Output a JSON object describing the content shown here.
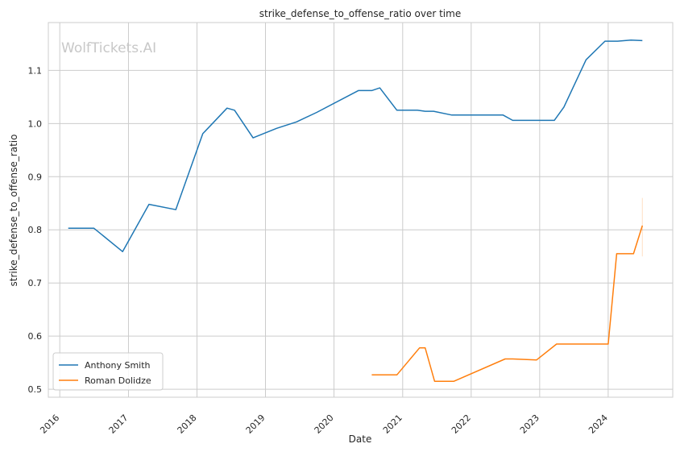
{
  "chart_data": {
    "type": "line",
    "title": "strike_defense_to_offense_ratio over time",
    "xlabel": "Date",
    "ylabel": "strike_defense_to_offense_ratio",
    "watermark": "WolfTickets.AI",
    "x_ticks": [
      "2016",
      "2017",
      "2018",
      "2019",
      "2020",
      "2021",
      "2022",
      "2023",
      "2024"
    ],
    "y_ticks": [
      "0.5",
      "0.6",
      "0.7",
      "0.8",
      "0.9",
      "1.0",
      "1.1"
    ],
    "ylim": [
      0.485,
      1.19
    ],
    "xlim": [
      "2015-11-01",
      "2024-12-10"
    ],
    "grid": true,
    "legend_position": "bottom-left",
    "series": [
      {
        "name": "Anthony Smith",
        "color": "#1f77b4",
        "points": [
          [
            "2016-02-15",
            0.803
          ],
          [
            "2016-07-01",
            0.803
          ],
          [
            "2016-12-01",
            0.759
          ],
          [
            "2017-04-20",
            0.848
          ],
          [
            "2017-09-10",
            0.838
          ],
          [
            "2018-02-01",
            0.981
          ],
          [
            "2018-06-10",
            1.029
          ],
          [
            "2018-07-20",
            1.025
          ],
          [
            "2018-10-27",
            0.973
          ],
          [
            "2019-03-01",
            0.991
          ],
          [
            "2019-06-15",
            1.003
          ],
          [
            "2019-10-01",
            1.021
          ],
          [
            "2020-05-10",
            1.062
          ],
          [
            "2020-07-20",
            1.062
          ],
          [
            "2020-09-01",
            1.067
          ],
          [
            "2020-12-01",
            1.025
          ],
          [
            "2021-03-20",
            1.025
          ],
          [
            "2021-05-01",
            1.023
          ],
          [
            "2021-06-15",
            1.023
          ],
          [
            "2021-09-20",
            1.016
          ],
          [
            "2022-06-20",
            1.016
          ],
          [
            "2022-08-10",
            1.006
          ],
          [
            "2023-03-20",
            1.006
          ],
          [
            "2023-05-10",
            1.031
          ],
          [
            "2023-09-05",
            1.12
          ],
          [
            "2023-12-15",
            1.155
          ],
          [
            "2024-02-20",
            1.155
          ],
          [
            "2024-05-01",
            1.157
          ],
          [
            "2024-07-01",
            1.156
          ]
        ]
      },
      {
        "name": "Roman Dolidze",
        "color": "#ff7f0e",
        "points": [
          [
            "2020-07-20",
            0.527
          ],
          [
            "2020-12-01",
            0.527
          ],
          [
            "2021-04-01",
            0.578
          ],
          [
            "2021-05-01",
            0.578
          ],
          [
            "2021-06-20",
            0.515
          ],
          [
            "2021-10-01",
            0.515
          ],
          [
            "2022-07-01",
            0.557
          ],
          [
            "2022-08-10",
            0.557
          ],
          [
            "2022-12-15",
            0.555
          ],
          [
            "2023-04-01",
            0.585
          ],
          [
            "2024-01-01",
            0.585
          ],
          [
            "2024-02-15",
            0.755
          ],
          [
            "2024-05-15",
            0.755
          ],
          [
            "2024-07-01",
            0.808
          ]
        ]
      }
    ]
  }
}
